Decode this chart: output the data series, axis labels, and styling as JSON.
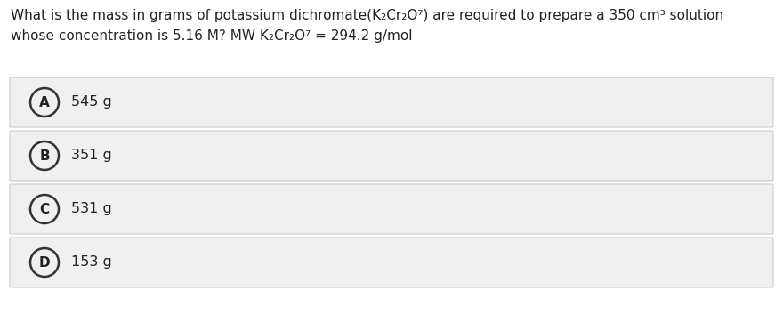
{
  "question_line1": "What is the mass in grams of potassium dichromate(K₂Cr₂O⁷) are required to prepare a 350 cm³ solution",
  "question_line2": "whose concentration is 5.16 M? MW K₂Cr₂O⁷ = 294.2 g/mol",
  "options": [
    {
      "label": "A",
      "text": "545 g"
    },
    {
      "label": "B",
      "text": "351 g"
    },
    {
      "label": "C",
      "text": "531 g"
    },
    {
      "label": "D",
      "text": "153 g"
    }
  ],
  "bg_color": "#ffffff",
  "option_bg_color": "#f0f0f0",
  "option_border_color": "#cccccc",
  "text_color": "#222222",
  "circle_edge_color": "#333333",
  "font_size_question": 11.0,
  "font_size_option": 11.5,
  "font_size_label": 11.0
}
